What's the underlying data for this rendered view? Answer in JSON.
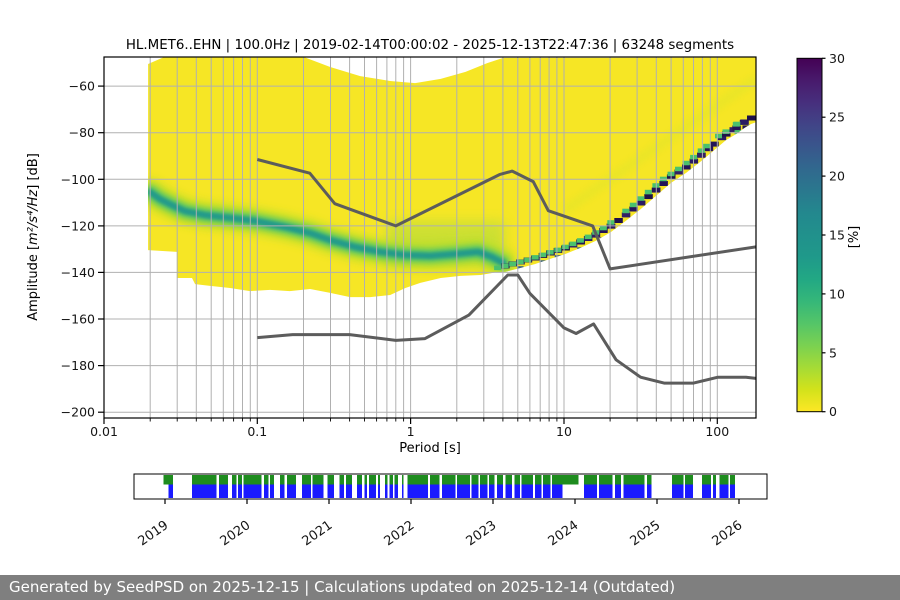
{
  "footer": {
    "text": "Generated by SeedPSD on 2025-12-15 | Calculations updated on 2025-12-14 (Outdated)"
  },
  "chart_data": {
    "type": "heatmap",
    "title": "HL.MET6..EHN | 100.0Hz | 2019-02-14T00:00:02 - 2025-12-13T22:47:36 | 63248 segments",
    "xlabel": "Period [s]",
    "ylabel": {
      "prefix": "Amplitude [",
      "math": "m²/s⁴/Hz",
      "suffix": "] [dB]"
    },
    "x_scale": "log",
    "grid": true,
    "xlim": [
      0.01,
      178.9
    ],
    "ylim": [
      -202.5,
      -47.5
    ],
    "xticks": [
      {
        "v": 0.01,
        "label": "0.01"
      },
      {
        "v": 0.1,
        "label": "0.1"
      },
      {
        "v": 1,
        "label": "1"
      },
      {
        "v": 10,
        "label": "10"
      },
      {
        "v": 100,
        "label": "100"
      }
    ],
    "yticks": [
      {
        "v": -60,
        "label": "−60"
      },
      {
        "v": -80,
        "label": "−80"
      },
      {
        "v": -100,
        "label": "−100"
      },
      {
        "v": -120,
        "label": "−120"
      },
      {
        "v": -140,
        "label": "−140"
      },
      {
        "v": -160,
        "label": "−160"
      },
      {
        "v": -180,
        "label": "−180"
      },
      {
        "v": -200,
        "label": "−200"
      }
    ],
    "colorbar": {
      "label": "[%]",
      "min": 0,
      "max": 30,
      "ticks": [
        {
          "v": 0,
          "label": "0"
        },
        {
          "v": 5,
          "label": "5"
        },
        {
          "v": 10,
          "label": "10"
        },
        {
          "v": 15,
          "label": "15"
        },
        {
          "v": 20,
          "label": "20"
        },
        {
          "v": 25,
          "label": "25"
        },
        {
          "v": 30,
          "label": "30"
        }
      ],
      "gradient_bottom_to_top": [
        "#fde725",
        "#d2e21b",
        "#a5db36",
        "#7ad151",
        "#54c568",
        "#35b779",
        "#22a884",
        "#1f998a",
        "#21918c",
        "#23888e",
        "#2a788e",
        "#31688e",
        "#39568c",
        "#414487",
        "#472f7d",
        "#481a6c",
        "#440154"
      ]
    },
    "colors": {
      "body": "#f6e625",
      "halo": "#b5de2b",
      "green": "#54c568",
      "teal": "#219a8b",
      "blob": "#8fd64a",
      "streak": "#dfe52c",
      "navy": [
        "#231557",
        "#2b1b63",
        "#1e1048",
        "#332065",
        "#261457"
      ],
      "fleck_green": "#4ac16d",
      "fleck_blue": "#35608d",
      "grid": "#b0b0b0",
      "noise": "#5c5c5c",
      "frame": "#000000"
    },
    "pdf": {
      "top_edge": [
        [
          0.0194,
          -50.5
        ],
        [
          0.0243,
          -47.7
        ],
        [
          0.205,
          -47.7
        ],
        [
          0.299,
          -51.8
        ],
        [
          0.469,
          -55.7
        ],
        [
          0.736,
          -57.8
        ],
        [
          1.07,
          -58.7
        ],
        [
          1.57,
          -56.9
        ],
        [
          2.28,
          -53.9
        ],
        [
          3.16,
          -50.1
        ],
        [
          4.01,
          -47.9
        ],
        [
          178.9,
          -47.7
        ]
      ],
      "bottom_edge_rtl": [
        [
          3.7,
          -139.8
        ],
        [
          2.86,
          -141.1
        ],
        [
          2.12,
          -141.5
        ],
        [
          1.57,
          -142.4
        ],
        [
          1.156,
          -144.5
        ],
        [
          0.924,
          -146.7
        ],
        [
          0.736,
          -149.7
        ],
        [
          0.545,
          -150.6
        ],
        [
          0.403,
          -150.6
        ],
        [
          0.299,
          -148.8
        ],
        [
          0.221,
          -147.1
        ],
        [
          0.163,
          -148.0
        ],
        [
          0.121,
          -147.5
        ],
        [
          0.0896,
          -148.0
        ],
        [
          0.0664,
          -146.7
        ],
        [
          0.0492,
          -145.8
        ],
        [
          0.0393,
          -145.0
        ],
        [
          0.0375,
          -142.4
        ],
        [
          0.0299,
          -142.4
        ],
        [
          0.0299,
          -131.2
        ],
        [
          0.0194,
          -130.4
        ]
      ],
      "mode_curve": [
        [
          0.02,
          -105.5
        ],
        [
          0.0232,
          -108.5
        ],
        [
          0.0277,
          -111.1
        ],
        [
          0.0338,
          -113.7
        ],
        [
          0.0456,
          -115.4
        ],
        [
          0.0664,
          -116.6
        ],
        [
          0.0966,
          -117.9
        ],
        [
          0.152,
          -120.5
        ],
        [
          0.221,
          -123.1
        ],
        [
          0.299,
          -126.1
        ],
        [
          0.434,
          -129.1
        ],
        [
          0.633,
          -131.2
        ],
        [
          0.924,
          -132.5
        ],
        [
          1.34,
          -132.9
        ],
        [
          1.95,
          -132.1
        ],
        [
          2.76,
          -131.2
        ],
        [
          3.4,
          -133.4
        ],
        [
          4.01,
          -135.9
        ]
      ],
      "staircase": [
        [
          4.13,
          -137.2
        ],
        [
          5.18,
          -135.5
        ],
        [
          6.49,
          -133.8
        ],
        [
          8.14,
          -131.6
        ],
        [
          10.2,
          -129.5
        ],
        [
          12.8,
          -126.9
        ],
        [
          16.1,
          -123.9
        ],
        [
          20.2,
          -120.1
        ],
        [
          25.3,
          -115.3
        ],
        [
          31.7,
          -110.2
        ],
        [
          39.8,
          -104.6
        ],
        [
          49.9,
          -99.0
        ],
        [
          62.6,
          -94.7
        ],
        [
          78.6,
          -89.6
        ],
        [
          95.5,
          -84.9
        ],
        [
          114,
          -80.6
        ],
        [
          133,
          -78.0
        ],
        [
          150,
          -75.4
        ],
        [
          166,
          -73.7
        ],
        [
          178.9,
          -72.9
        ]
      ],
      "extra_band": {
        "p0": 146,
        "p1": 178.9,
        "db": -77.8
      },
      "blob": {
        "p0": 0.7,
        "p1": 4.1,
        "db0": -118,
        "db1": -137
      },
      "streak": {
        "from": [
          10.2,
          -113.2
        ],
        "to": [
          178.9,
          -56.9
        ]
      }
    },
    "noise_models": {
      "nhnm": [
        [
          0.1,
          -91.5
        ],
        [
          0.22,
          -97.4
        ],
        [
          0.32,
          -110.5
        ],
        [
          0.8,
          -120.0
        ],
        [
          3.8,
          -98.0
        ],
        [
          4.6,
          -96.5
        ],
        [
          6.3,
          -101.0
        ],
        [
          7.9,
          -113.5
        ],
        [
          15.4,
          -120.0
        ],
        [
          20.0,
          -138.5
        ],
        [
          178.9,
          -129.0
        ]
      ],
      "nlnm": [
        [
          0.1,
          -168.0
        ],
        [
          0.17,
          -166.7
        ],
        [
          0.4,
          -166.7
        ],
        [
          0.8,
          -169.2
        ],
        [
          1.24,
          -168.4
        ],
        [
          2.4,
          -158.3
        ],
        [
          4.3,
          -141.1
        ],
        [
          5.0,
          -141.1
        ],
        [
          6.0,
          -149.0
        ],
        [
          10.0,
          -163.8
        ],
        [
          12.0,
          -166.2
        ],
        [
          15.6,
          -162.1
        ],
        [
          21.9,
          -177.5
        ],
        [
          31.6,
          -185.0
        ],
        [
          45.0,
          -187.5
        ],
        [
          70.0,
          -187.5
        ],
        [
          101.0,
          -185.0
        ],
        [
          154.0,
          -185.0
        ],
        [
          178.9,
          -185.5
        ]
      ]
    },
    "timeline": {
      "years": [
        2019,
        2020,
        2021,
        2022,
        2023,
        2024,
        2025,
        2026
      ],
      "green": "#1e8c1e",
      "blue": "#1a1aff",
      "segments": [
        [
          2018.98,
          2019.05,
          "g"
        ],
        [
          2019.04,
          2019.1
        ],
        [
          2019.33,
          2019.63
        ],
        [
          2019.66,
          2019.77
        ],
        [
          2019.82,
          2019.87
        ],
        [
          2019.89,
          2019.94
        ],
        [
          2019.96,
          2020.18
        ],
        [
          2020.21,
          2020.26
        ],
        [
          2020.28,
          2020.33
        ],
        [
          2020.4,
          2020.46
        ],
        [
          2020.49,
          2020.6
        ],
        [
          2020.67,
          2020.78
        ],
        [
          2020.8,
          2020.93
        ],
        [
          2020.98,
          2021.06
        ],
        [
          2021.13,
          2021.18
        ],
        [
          2021.21,
          2021.28
        ],
        [
          2021.34,
          2021.4
        ],
        [
          2021.43,
          2021.46
        ],
        [
          2021.49,
          2021.57
        ],
        [
          2021.6,
          2021.62
        ],
        [
          2021.68,
          2021.71
        ],
        [
          2021.74,
          2021.78
        ],
        [
          2021.8,
          2021.84
        ],
        [
          2021.89,
          2021.91
        ],
        [
          2021.96,
          2022.21
        ],
        [
          2022.23,
          2022.35
        ],
        [
          2022.38,
          2022.54
        ],
        [
          2022.56,
          2022.72
        ],
        [
          2022.74,
          2022.82
        ],
        [
          2022.84,
          2022.93
        ],
        [
          2022.95,
          2023.02
        ],
        [
          2023.05,
          2023.12
        ],
        [
          2023.15,
          2023.23
        ],
        [
          2023.26,
          2023.33
        ],
        [
          2023.35,
          2023.49
        ],
        [
          2023.51,
          2023.59
        ],
        [
          2023.61,
          2023.7
        ],
        [
          2023.72,
          2023.85
        ],
        [
          2023.85,
          2024.04,
          "g"
        ],
        [
          2024.11,
          2024.27
        ],
        [
          2024.29,
          2024.46
        ],
        [
          2024.49,
          2024.56
        ],
        [
          2024.59,
          2024.85
        ],
        [
          2024.88,
          2024.93
        ],
        [
          2025.18,
          2025.32
        ],
        [
          2025.34,
          2025.44
        ],
        [
          2025.55,
          2025.66
        ],
        [
          2025.68,
          2025.72
        ],
        [
          2025.76,
          2025.87
        ],
        [
          2025.89,
          2025.95
        ]
      ]
    }
  }
}
